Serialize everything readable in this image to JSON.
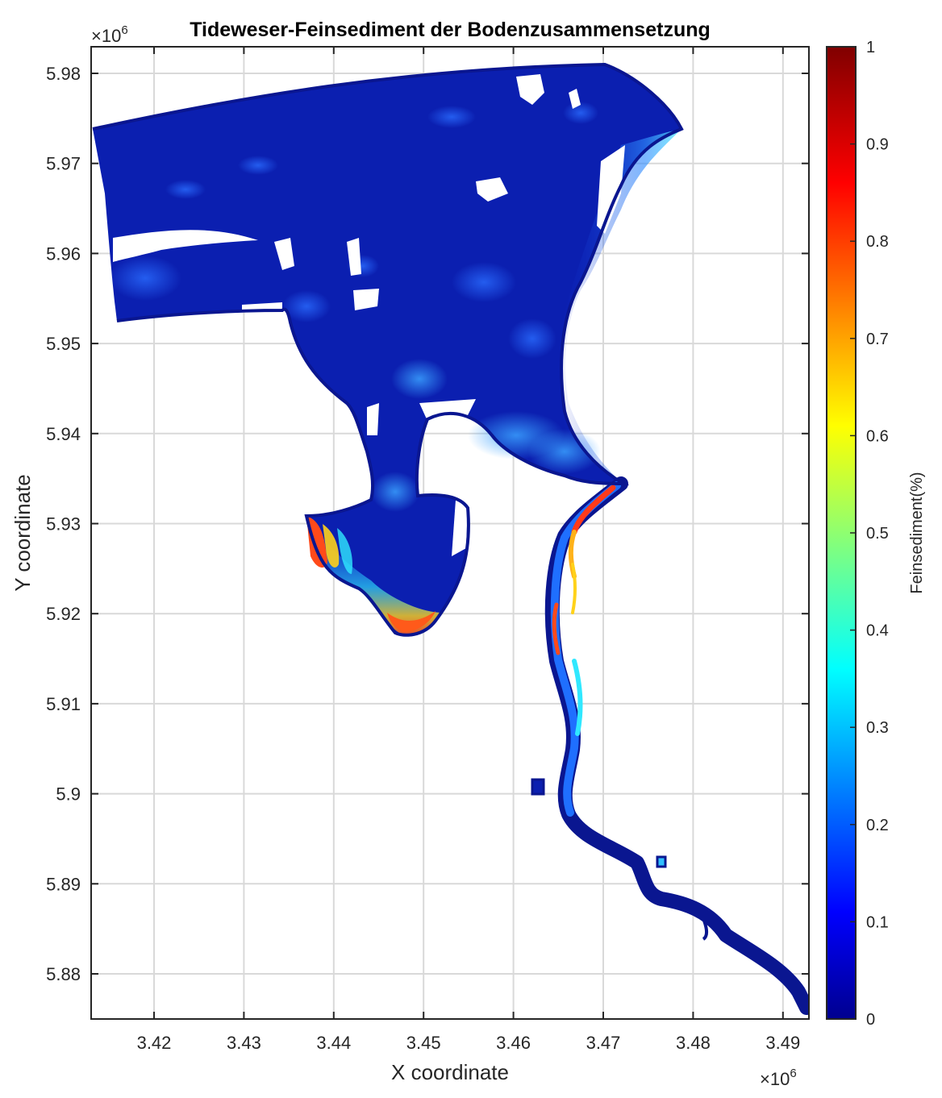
{
  "figure": {
    "title": "Tideweser-Feinsediment der Bodenzusammensetzung",
    "x_axis": {
      "label": "X coordinate",
      "multiplier_base": "×10",
      "multiplier_exp": "6",
      "ticks": [
        "3.42",
        "3.43",
        "3.44",
        "3.45",
        "3.46",
        "3.47",
        "3.48",
        "3.49"
      ]
    },
    "y_axis": {
      "label": "Y coordinate",
      "multiplier_base": "×10",
      "multiplier_exp": "6",
      "ticks": [
        "5.98",
        "5.97",
        "5.96",
        "5.95",
        "5.94",
        "5.93",
        "5.92",
        "5.91",
        "5.9",
        "5.89",
        "5.88"
      ]
    },
    "colorbar": {
      "label": "Feinsediment(%)",
      "colormap": "jet",
      "ticks": [
        "1",
        "0.9",
        "0.8",
        "0.7",
        "0.6",
        "0.5",
        "0.4",
        "0.3",
        "0.2",
        "0.1",
        "0"
      ],
      "range": [
        0,
        1
      ]
    },
    "colors": {
      "water_base": "#0b1fb0",
      "outline": "#0a1690",
      "grid": "#d9d9d9",
      "mud_high": "#e8261a"
    }
  }
}
